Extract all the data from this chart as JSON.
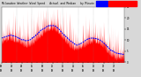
{
  "bg_color": "#d8d8d8",
  "plot_bg": "#ffffff",
  "bar_color": "#ff0000",
  "median_color": "#0000ff",
  "n_points": 1440,
  "y_min": 0,
  "y_max": 25,
  "legend_bar_color": "#ff0000",
  "legend_line_color": "#0000ff",
  "title_text": "Milwaukee Weather Wind Speed   Actual and Median   by Minute"
}
